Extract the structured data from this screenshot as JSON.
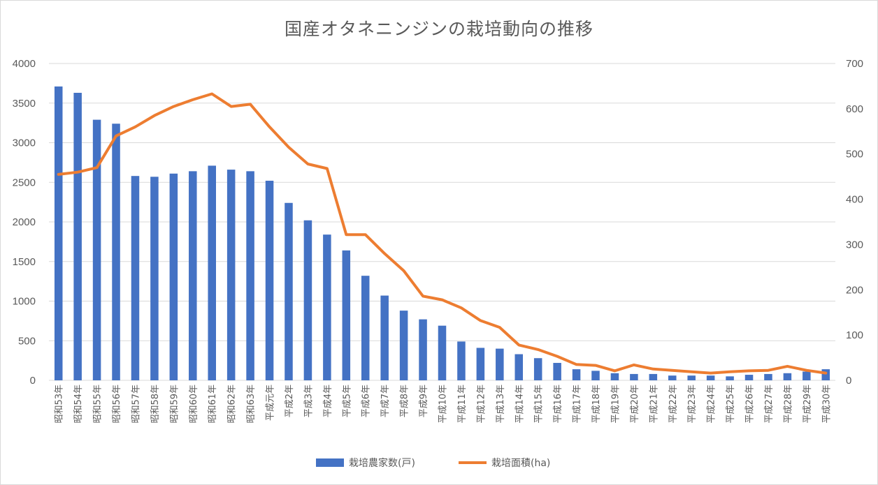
{
  "chart_data": {
    "type": "bar",
    "title": "国産オタネニンジンの栽培動向の推移",
    "categories": [
      "昭和53年",
      "昭和54年",
      "昭和55年",
      "昭和56年",
      "昭和57年",
      "昭和58年",
      "昭和59年",
      "昭和60年",
      "昭和61年",
      "昭和62年",
      "昭和63年",
      "平成元年",
      "平成2年",
      "平成3年",
      "平成4年",
      "平成5年",
      "平成6年",
      "平成7年",
      "平成8年",
      "平成9年",
      "平成10年",
      "平成11年",
      "平成12年",
      "平成13年",
      "平成14年",
      "平成15年",
      "平成16年",
      "平成17年",
      "平成18年",
      "平成19年",
      "平成20年",
      "平成21年",
      "平成22年",
      "平成23年",
      "平成24年",
      "平成25年",
      "平成26年",
      "平成27年",
      "平成28年",
      "平成29年",
      "平成30年"
    ],
    "series": [
      {
        "name": "栽培農家数(戸)",
        "type": "bar",
        "axis": "left",
        "color": "#4472C4",
        "values": [
          3710,
          3630,
          3290,
          3240,
          2580,
          2570,
          2610,
          2640,
          2710,
          2660,
          2640,
          2520,
          2240,
          2020,
          1840,
          1640,
          1320,
          1070,
          880,
          770,
          690,
          490,
          410,
          400,
          330,
          280,
          220,
          140,
          120,
          90,
          80,
          80,
          60,
          60,
          60,
          50,
          70,
          80,
          90,
          110,
          140
        ]
      },
      {
        "name": "栽培面積(ha)",
        "type": "line",
        "axis": "right",
        "color": "#ED7D31",
        "values": [
          455,
          460,
          470,
          540,
          560,
          585,
          605,
          620,
          633,
          605,
          610,
          560,
          515,
          478,
          468,
          322,
          322,
          280,
          242,
          186,
          178,
          160,
          132,
          117,
          78,
          68,
          53,
          35,
          33,
          21,
          34,
          25,
          22,
          19,
          16,
          19,
          21,
          22,
          31,
          22,
          16
        ]
      }
    ],
    "y_left": {
      "min": 0,
      "max": 4000,
      "step": 500,
      "ticks": [
        "0",
        "500",
        "1000",
        "1500",
        "2000",
        "2500",
        "3000",
        "3500",
        "4000"
      ]
    },
    "y_right": {
      "min": 0,
      "max": 700,
      "step": 100,
      "ticks": [
        "0",
        "100",
        "200",
        "300",
        "400",
        "500",
        "600",
        "700"
      ]
    },
    "legend": {
      "position": "bottom",
      "items": [
        "栽培農家数(戸)",
        "栽培面積(ha)"
      ]
    },
    "grid": true
  }
}
